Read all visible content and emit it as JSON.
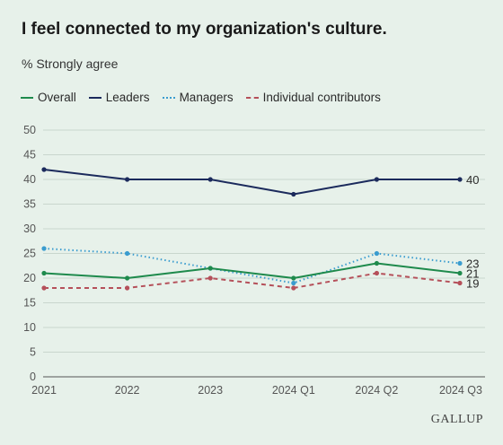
{
  "colors": {
    "background": "#e7f1ea",
    "overall": "#1e8a4c",
    "leaders": "#1b2a5c",
    "managers": "#3a9ccf",
    "individual": "#b5505a",
    "grid": "#c9d6cd",
    "axis": "#555555"
  },
  "brand": "GALLUP",
  "chart_data": {
    "type": "line",
    "title": "I feel connected to my organization's culture.",
    "subtitle": "% Strongly agree",
    "categories": [
      "2021",
      "2022",
      "2023",
      "2024 Q1",
      "2024 Q2",
      "2024 Q3"
    ],
    "ylim": [
      0,
      50
    ],
    "yticks": [
      0,
      5,
      10,
      15,
      20,
      25,
      30,
      35,
      40,
      45,
      50
    ],
    "grid": true,
    "legend_position": "top-left",
    "series": [
      {
        "name": "Overall",
        "values": [
          21,
          20,
          22,
          20,
          23,
          21
        ],
        "style": "solid",
        "color_key": "overall",
        "end_label": "21"
      },
      {
        "name": "Leaders",
        "values": [
          42,
          40,
          40,
          37,
          40,
          40
        ],
        "style": "solid",
        "color_key": "leaders",
        "end_label": "40"
      },
      {
        "name": "Managers",
        "values": [
          26,
          25,
          22,
          19,
          25,
          23
        ],
        "style": "dotted",
        "color_key": "managers",
        "end_label": "23"
      },
      {
        "name": "Individual contributors",
        "values": [
          18,
          18,
          20,
          18,
          21,
          19
        ],
        "style": "dashed",
        "color_key": "individual",
        "end_label": "19"
      }
    ]
  }
}
